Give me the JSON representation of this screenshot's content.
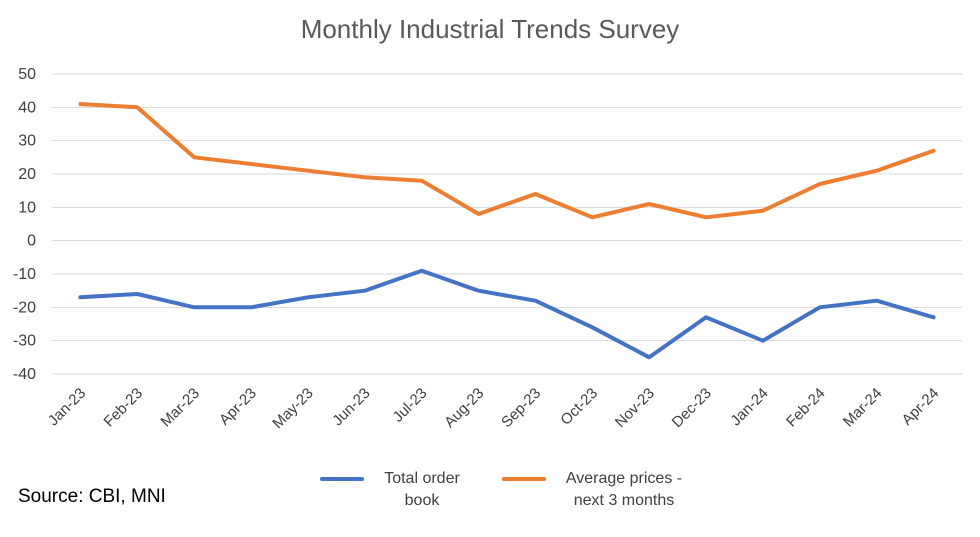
{
  "chart_data": {
    "type": "line",
    "title": "Monthly Industrial Trends Survey",
    "categories": [
      "Jan-23",
      "Feb-23",
      "Mar-23",
      "Apr-23",
      "May-23",
      "Jun-23",
      "Jul-23",
      "Aug-23",
      "Sep-23",
      "Oct-23",
      "Nov-23",
      "Dec-23",
      "Jan-24",
      "Feb-24",
      "Mar-24",
      "Apr-24"
    ],
    "series": [
      {
        "name": "Total order book",
        "color": "#4472C4",
        "values": [
          -17,
          -16,
          -20,
          -20,
          -17,
          -15,
          -9,
          -15,
          -18,
          -26,
          -35,
          -23,
          -30,
          -20,
          -18,
          -23
        ]
      },
      {
        "name": "Average prices - next 3 months",
        "color": "#ED7D31",
        "values": [
          41,
          40,
          25,
          23,
          21,
          19,
          18,
          8,
          14,
          7,
          11,
          7,
          9,
          17,
          21,
          27
        ]
      }
    ],
    "ylim": [
      -40,
      50
    ],
    "yticks": [
      50,
      40,
      30,
      20,
      10,
      0,
      -10,
      -20,
      -30,
      -40
    ],
    "grid": true,
    "legend_position": "bottom"
  },
  "source_text": "Source: CBI, MNI"
}
